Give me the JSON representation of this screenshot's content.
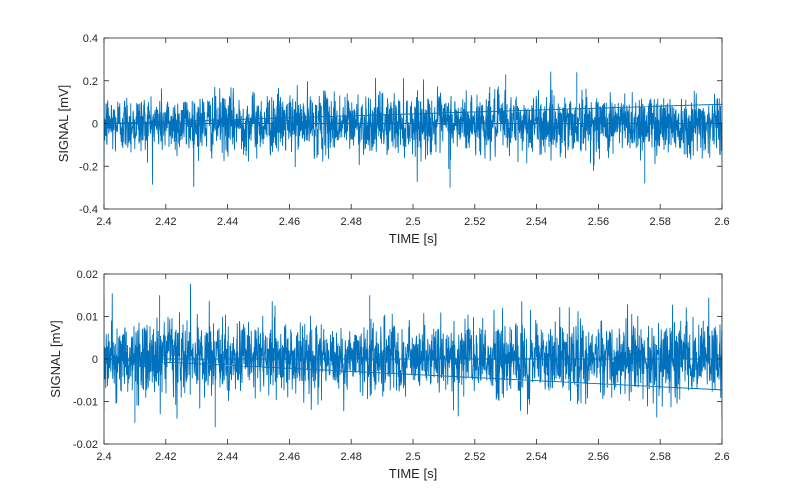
{
  "figure": {
    "background": "#ffffff",
    "line_color": "#0072BD",
    "axis_color": "#262626"
  },
  "chart_data": [
    {
      "type": "line",
      "xlabel": "TIME [s]",
      "ylabel": "SIGNAL [mV]",
      "xlim": [
        2.4,
        2.6
      ],
      "ylim": [
        -0.4,
        0.4
      ],
      "xticks": [
        2.4,
        2.42,
        2.44,
        2.46,
        2.48,
        2.5,
        2.52,
        2.54,
        2.56,
        2.58,
        2.6
      ],
      "xtick_labels": [
        "2.4",
        "2.42",
        "2.44",
        "2.46",
        "2.48",
        "2.5",
        "2.52",
        "2.54",
        "2.56",
        "2.58",
        "2.6"
      ],
      "yticks": [
        -0.4,
        -0.2,
        0,
        0.2,
        0.4
      ],
      "ytick_labels": [
        "-0.4",
        "-0.2",
        "0",
        "0.2",
        "0.4"
      ],
      "grid": false,
      "series": [
        {
          "description": "dense noise signal, band approx ±0.17 mV, peaks approx ±0.3 mV",
          "samples": [
            {
              "x": 2.4,
              "y": 0.17
            },
            {
              "x": 2.4,
              "y": -0.22
            },
            {
              "x": 2.53,
              "y": 0.23
            },
            {
              "x": 2.512,
              "y": -0.3
            },
            {
              "x": 2.553,
              "y": 0.24
            },
            {
              "x": 2.575,
              "y": -0.28
            },
            {
              "x": 2.6,
              "y": 0.2
            },
            {
              "x": 2.6,
              "y": -0.18
            }
          ],
          "band": 0.17
        }
      ]
    },
    {
      "type": "line",
      "xlabel": "TIME [s]",
      "ylabel": "SIGNAL [mV]",
      "xlim": [
        2.4,
        2.6
      ],
      "ylim": [
        -0.02,
        0.02
      ],
      "xticks": [
        2.4,
        2.42,
        2.44,
        2.46,
        2.48,
        2.5,
        2.52,
        2.54,
        2.56,
        2.58,
        2.6
      ],
      "xtick_labels": [
        "2.4",
        "2.42",
        "2.44",
        "2.46",
        "2.48",
        "2.5",
        "2.52",
        "2.54",
        "2.56",
        "2.58",
        "2.6"
      ],
      "yticks": [
        -0.02,
        -0.01,
        0,
        0.01,
        0.02
      ],
      "ytick_labels": [
        "-0.02",
        "-0.01",
        "0",
        "0.01",
        "0.02"
      ],
      "grid": false,
      "series": [
        {
          "description": "dense noise signal, band approx ±0.011 mV, peaks approx ±0.015 mV",
          "samples": [
            {
              "x": 2.4,
              "y": 0.014
            },
            {
              "x": 2.4,
              "y": -0.012
            },
            {
              "x": 2.418,
              "y": 0.015
            },
            {
              "x": 2.41,
              "y": -0.015
            },
            {
              "x": 2.486,
              "y": 0.015
            },
            {
              "x": 2.436,
              "y": -0.016
            },
            {
              "x": 2.6,
              "y": 0.011
            },
            {
              "x": 2.6,
              "y": -0.014
            }
          ],
          "band": 0.0105
        }
      ]
    }
  ]
}
